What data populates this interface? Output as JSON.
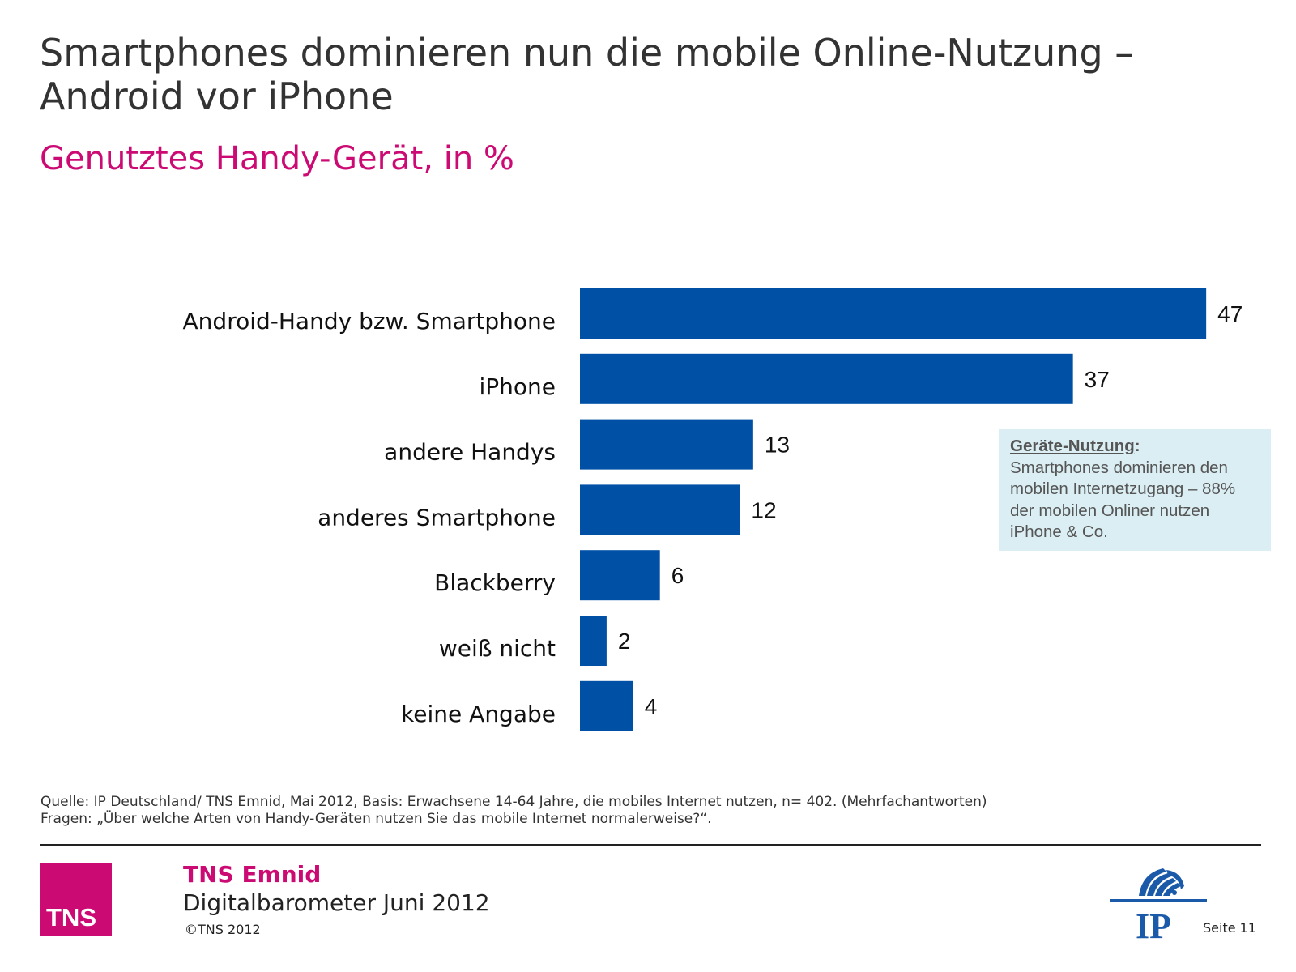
{
  "title_lines": [
    "Smartphones dominieren nun die mobile Online-Nutzung –",
    "Android vor iPhone"
  ],
  "subtitle": "Genutztes Handy-Gerät, in %",
  "chart_data": {
    "type": "bar",
    "orientation": "horizontal",
    "categories": [
      "Android-Handy bzw. Smartphone",
      "iPhone",
      "andere Handys",
      "anderes Smartphone",
      "Blackberry",
      "weiß nicht",
      "keine Angabe"
    ],
    "values": [
      47,
      37,
      13,
      12,
      6,
      2,
      4
    ],
    "data_labels": [
      "47",
      "37",
      "13",
      "12",
      "6",
      "2",
      "4"
    ],
    "bar_color": "#0050a5",
    "grid": false,
    "legend": "none"
  },
  "callout": {
    "heading": "Geräte-Nutzung",
    "heading_suffix": ":",
    "lines": [
      "Smartphones dominieren den",
      "mobilen Internetzugang – 88%",
      "der mobilen Onliner nutzen",
      "iPhone & Co."
    ]
  },
  "source": {
    "line1": "Quelle: IP Deutschland/ TNS Emnid, Mai 2012, Basis: Erwachsene 14-64 Jahre, die mobiles Internet nutzen, n= 402. (Mehrfachantworten)",
    "line2": "Fragen: „Über welche Arten von Handy-Geräten nutzen Sie das mobile Internet normalerweise?“."
  },
  "footer": {
    "logo_text": "TNS",
    "brand": "TNS Emnid",
    "report": "Digitalbarometer Juni 2012",
    "copyright": "©TNS 2012",
    "ip_logo_text": "IP",
    "page_label": "Seite 11"
  },
  "colors": {
    "accent": "#cc0a74",
    "bar": "#0050a5",
    "callout_bg": "#daeef4",
    "ip_blue": "#1b5aa8"
  }
}
